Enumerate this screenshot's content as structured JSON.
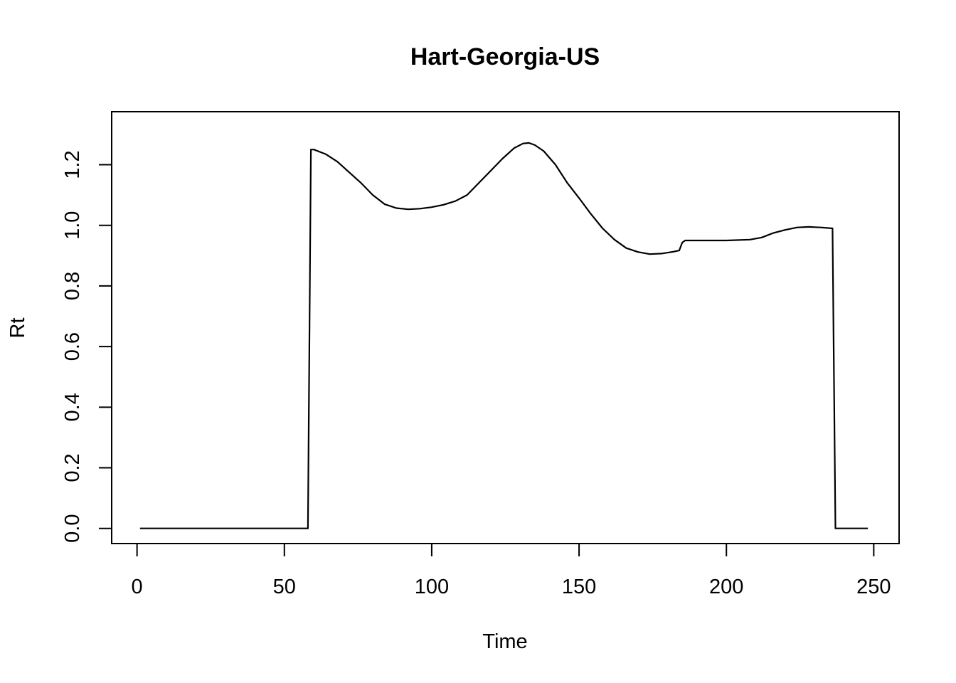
{
  "chart_data": {
    "type": "line",
    "title": "Hart-Georgia-US",
    "xlabel": "Time",
    "ylabel": "Rt",
    "xlim": [
      -8.6,
      258.6
    ],
    "ylim": [
      -0.05,
      1.375
    ],
    "xticks": [
      0,
      50,
      100,
      150,
      200,
      250
    ],
    "xtick_labels": [
      "0",
      "50",
      "100",
      "150",
      "200",
      "250"
    ],
    "yticks": [
      0.0,
      0.2,
      0.4,
      0.6,
      0.8,
      1.0,
      1.2
    ],
    "ytick_labels": [
      "0.0",
      "0.2",
      "0.4",
      "0.6",
      "0.8",
      "1.0",
      "1.2"
    ],
    "grid": false,
    "legend": "none",
    "line_color": "#000000",
    "series": [
      {
        "x": [
          1,
          58,
          59,
          60,
          64,
          68,
          72,
          76,
          80,
          84,
          88,
          92,
          96,
          100,
          104,
          108,
          112,
          116,
          120,
          124,
          128,
          131,
          133,
          135,
          138,
          142,
          146,
          150,
          154,
          158,
          162,
          166,
          170,
          174,
          178,
          182,
          184,
          185,
          186,
          190,
          200,
          208,
          212,
          216,
          220,
          224,
          228,
          232,
          236,
          237,
          248
        ],
        "y": [
          0.0,
          0.0,
          1.25,
          1.25,
          1.235,
          1.21,
          1.175,
          1.14,
          1.1,
          1.07,
          1.057,
          1.053,
          1.055,
          1.06,
          1.068,
          1.08,
          1.1,
          1.14,
          1.18,
          1.22,
          1.255,
          1.27,
          1.272,
          1.265,
          1.245,
          1.2,
          1.14,
          1.09,
          1.038,
          0.99,
          0.953,
          0.925,
          0.912,
          0.905,
          0.907,
          0.913,
          0.917,
          0.943,
          0.95,
          0.95,
          0.95,
          0.953,
          0.96,
          0.975,
          0.985,
          0.993,
          0.995,
          0.993,
          0.99,
          0.0,
          0.0
        ]
      }
    ]
  }
}
